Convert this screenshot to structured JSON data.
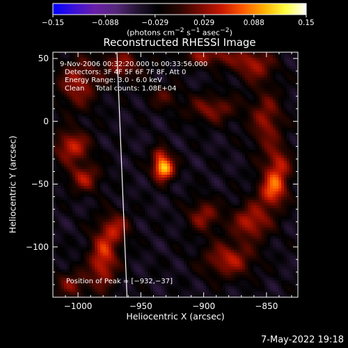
{
  "chart_data": {
    "type": "heatmap",
    "title": "Reconstructed RHESSI Image",
    "xlabel": "Heliocentric X (arcsec)",
    "ylabel": "Heliocentric Y (arcsec)",
    "xlim": [
      -1020,
      -825
    ],
    "ylim": [
      -140,
      55
    ],
    "xticks": [
      -1000,
      -950,
      -900,
      -850
    ],
    "xtick_labels": [
      "−1000",
      "−950",
      "−900",
      "−850"
    ],
    "yticks": [
      50,
      0,
      -50,
      -100
    ],
    "ytick_labels": [
      "50",
      "0",
      "−50",
      "−100"
    ],
    "annotations": [
      "9-Nov-2006 00:32:20.000 to 00:33:56.000",
      "Detectors: 3F 4F 5F 6F 7F 8F, Att 0",
      "Energy Range: 3.0 - 6.0 keV",
      "Clean     Total counts: 1.08E+04"
    ],
    "peak_label": "Position of Peak = [−932,−37]",
    "peak": {
      "x": -932,
      "y": -37
    },
    "peak_value": 0.15,
    "limb_line": [
      [
        -969,
        55
      ],
      [
        -961,
        -140
      ]
    ],
    "components": [
      {
        "x": -932,
        "y": -37,
        "sx": 6,
        "sy": 7,
        "amp": 0.15
      },
      {
        "x": -935,
        "y": -25,
        "sx": 4,
        "sy": 4,
        "amp": 0.05
      },
      {
        "x": -1005,
        "y": -20,
        "sx": 10,
        "sy": 9,
        "amp": 0.085
      },
      {
        "x": -995,
        "y": -45,
        "sx": 9,
        "sy": 8,
        "amp": 0.07
      },
      {
        "x": -1000,
        "y": 30,
        "sx": 11,
        "sy": 14,
        "amp": 0.07
      },
      {
        "x": -965,
        "y": 45,
        "sx": 12,
        "sy": 9,
        "amp": 0.06
      },
      {
        "x": -895,
        "y": 52,
        "sx": 16,
        "sy": 6,
        "amp": 0.065
      },
      {
        "x": -860,
        "y": 45,
        "sx": 11,
        "sy": 9,
        "amp": 0.07
      },
      {
        "x": -893,
        "y": 10,
        "sx": 14,
        "sy": 8,
        "amp": 0.06
      },
      {
        "x": -850,
        "y": 0,
        "sx": 9,
        "sy": 18,
        "amp": 0.065
      },
      {
        "x": -845,
        "y": -55,
        "sx": 8,
        "sy": 10,
        "amp": 0.1
      },
      {
        "x": -840,
        "y": -35,
        "sx": 7,
        "sy": 10,
        "amp": 0.07
      },
      {
        "x": -862,
        "y": -80,
        "sx": 11,
        "sy": 10,
        "amp": 0.08
      },
      {
        "x": -880,
        "y": -110,
        "sx": 14,
        "sy": 10,
        "amp": 0.075
      },
      {
        "x": -900,
        "y": -75,
        "sx": 9,
        "sy": 9,
        "amp": 0.065
      },
      {
        "x": -980,
        "y": -110,
        "sx": 8,
        "sy": 16,
        "amp": 0.09
      },
      {
        "x": -970,
        "y": -85,
        "sx": 8,
        "sy": 9,
        "amp": 0.065
      },
      {
        "x": -1005,
        "y": -130,
        "sx": 10,
        "sy": 8,
        "amp": 0.055
      },
      {
        "x": -932,
        "y": 20,
        "sx": 9,
        "sy": 7,
        "amp": 0.04
      }
    ],
    "background": -0.035,
    "colorbar": {
      "vmin": -0.15,
      "vmax": 0.15,
      "ticks": [
        -0.15,
        -0.088,
        -0.029,
        0.029,
        0.088,
        0.15
      ],
      "tick_labels": [
        "−0.15",
        "−0.088",
        "−0.029",
        "0.029",
        "0.088",
        "0.15"
      ],
      "label_prefix": "(photons cm",
      "label_sup1": "−2",
      "label_mid": " s",
      "label_sup2": "−1",
      "label_suffix": " asec",
      "label_sup3": "−2",
      "label_end": ")",
      "colors": [
        "#0000ff",
        "#3b11d8",
        "#6a1fa8",
        "#55287a",
        "#241432",
        "#000000",
        "#2a0600",
        "#7a0a00",
        "#c81800",
        "#ff5a00",
        "#ffb000",
        "#ffff40",
        "#ffffff"
      ]
    }
  },
  "footer": {
    "timestamp": "7-May-2022 19:18"
  }
}
